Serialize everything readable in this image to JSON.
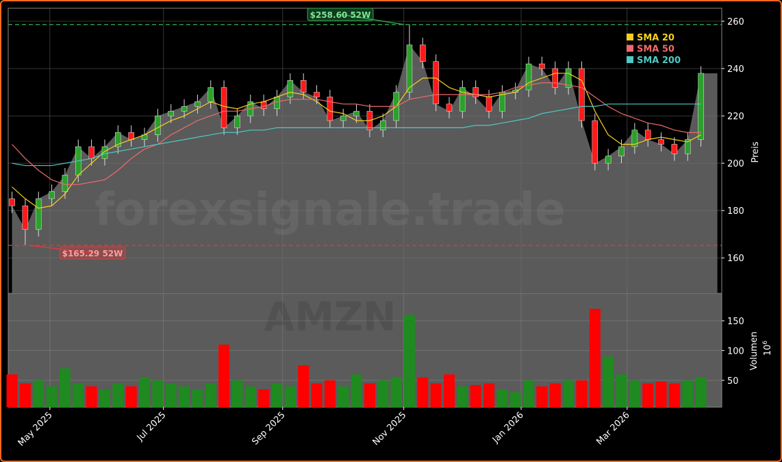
{
  "chart_data": [
    {
      "type": "candlestick",
      "watermark": "forexsignale.trade",
      "y_axis_label": "Preis",
      "x": [
        2,
        9,
        16,
        23,
        30,
        37,
        44,
        51,
        58,
        65,
        72,
        79,
        86,
        93,
        100,
        107,
        114,
        121,
        128,
        135,
        142,
        149,
        156,
        163,
        170,
        177,
        184,
        191,
        198,
        205,
        212,
        219,
        226,
        233,
        240,
        247,
        254,
        261,
        268,
        275,
        282,
        289,
        296,
        303,
        310,
        317,
        324,
        331,
        338,
        345,
        352,
        359,
        366
      ],
      "open": [
        185,
        182,
        172,
        185,
        188,
        195,
        207,
        202,
        207,
        213,
        210,
        212,
        220,
        222,
        224,
        226,
        232,
        215,
        220,
        226,
        223,
        228,
        235,
        230,
        228,
        218,
        220,
        222,
        214,
        218,
        230,
        250,
        243,
        225,
        222,
        232,
        228,
        222,
        230,
        231,
        242,
        240,
        232,
        240,
        218,
        200,
        203,
        207,
        214,
        210,
        208,
        204,
        210
      ],
      "high": [
        188,
        185,
        188,
        191,
        198,
        210,
        210,
        210,
        216,
        216,
        215,
        223,
        225,
        227,
        229,
        235,
        235,
        223,
        229,
        229,
        231,
        238,
        238,
        233,
        231,
        223,
        225,
        225,
        221,
        233,
        258.6,
        253,
        246,
        228,
        235,
        235,
        231,
        233,
        234,
        245,
        245,
        243,
        243,
        243,
        221,
        206,
        210,
        217,
        217,
        213,
        211,
        213,
        241
      ],
      "low": [
        179,
        165.29,
        169,
        182,
        185,
        192,
        199,
        199,
        204,
        207,
        207,
        209,
        217,
        219,
        221,
        223,
        212,
        212,
        217,
        220,
        220,
        225,
        227,
        225,
        215,
        215,
        217,
        211,
        211,
        215,
        227,
        240,
        222,
        219,
        219,
        225,
        219,
        219,
        227,
        228,
        237,
        229,
        229,
        215,
        197,
        197,
        200,
        204,
        207,
        205,
        201,
        201,
        207
      ],
      "close": [
        182,
        172,
        185,
        188,
        195,
        207,
        202,
        207,
        213,
        210,
        212,
        220,
        222,
        224,
        226,
        232,
        215,
        220,
        226,
        223,
        228,
        235,
        230,
        228,
        218,
        220,
        222,
        214,
        218,
        230,
        250,
        243,
        225,
        222,
        232,
        228,
        222,
        230,
        231,
        242,
        240,
        232,
        240,
        218,
        200,
        203,
        207,
        214,
        210,
        208,
        204,
        210,
        238
      ],
      "up_color": "#2ca02c",
      "down_color": "#ff1a1a",
      "area_color": "#5a5a5a",
      "series": [
        {
          "name": "SMA 20",
          "color": "#f5d020",
          "values": [
            190,
            185,
            181,
            182,
            187,
            195,
            200,
            205,
            208,
            210,
            212,
            215,
            218,
            220,
            223,
            226,
            224,
            223,
            225,
            226,
            228,
            230,
            229,
            226,
            222,
            221,
            218,
            218,
            220,
            224,
            232,
            236,
            236,
            232,
            230,
            229,
            228,
            229,
            230,
            234,
            236,
            238,
            238,
            235,
            222,
            212,
            208,
            208,
            210,
            211,
            210,
            209,
            212
          ]
        },
        {
          "name": "SMA 50",
          "color": "#f06a6a",
          "values": [
            208,
            202,
            197,
            193,
            191,
            191,
            192,
            193,
            197,
            202,
            206,
            208,
            212,
            215,
            218,
            220,
            222,
            222,
            223,
            224,
            226,
            227,
            227,
            227,
            226,
            225,
            225,
            224,
            224,
            224,
            227,
            228,
            229,
            229,
            229,
            229,
            229,
            230,
            232,
            233,
            234,
            234,
            233,
            232,
            228,
            224,
            221,
            219,
            217,
            216,
            214,
            213,
            213
          ]
        },
        {
          "name": "SMA 200",
          "color": "#4fc9c4",
          "values": [
            200,
            199,
            199,
            199,
            200,
            201,
            202,
            204,
            205,
            206,
            207,
            208,
            209,
            210,
            211,
            212,
            213,
            213,
            214,
            214,
            215,
            215,
            215,
            215,
            215,
            215,
            215,
            215,
            215,
            215,
            215,
            215,
            215,
            215,
            215,
            216,
            216,
            217,
            218,
            219,
            221,
            222,
            223,
            224,
            224,
            225,
            225,
            225,
            225,
            225,
            225,
            225,
            225
          ]
        }
      ],
      "high_52w": {
        "value": 258.6,
        "label": "$258.60 52W",
        "color": "#2ea84f"
      },
      "low_52w": {
        "value": 165.29,
        "label": "$165.29 52W",
        "color": "#e03a3a"
      },
      "xlim": [
        0,
        377
      ],
      "ylim": [
        145,
        265.5
      ],
      "yticks": [
        160,
        180,
        200,
        220,
        240,
        260
      ],
      "grid": true
    },
    {
      "type": "bar",
      "watermark": "AMZN",
      "y_axis_label": "Volumen",
      "y_unit_base": "10",
      "y_unit_exponent": "6",
      "values": [
        60,
        45,
        50,
        40,
        70,
        45,
        40,
        35,
        45,
        40,
        55,
        50,
        45,
        40,
        35,
        45,
        110,
        50,
        40,
        35,
        45,
        40,
        75,
        45,
        50,
        40,
        60,
        45,
        50,
        55,
        160,
        55,
        45,
        60,
        40,
        42,
        45,
        35,
        30,
        50,
        40,
        45,
        50,
        50,
        170,
        90,
        60,
        50,
        45,
        48,
        45,
        50,
        55
      ],
      "ylim": [
        5,
        196
      ],
      "yticks": [
        50,
        100,
        150
      ],
      "xticks": [
        {
          "value": 22,
          "label": "May 2025"
        },
        {
          "value": 82,
          "label": "Jul 2025"
        },
        {
          "value": 145,
          "label": "Sep 2025"
        },
        {
          "value": 209,
          "label": "Nov 2025"
        },
        {
          "value": 271,
          "label": "Jan 2026"
        },
        {
          "value": 327,
          "label": "Mar 2026"
        }
      ],
      "grid": true
    }
  ]
}
